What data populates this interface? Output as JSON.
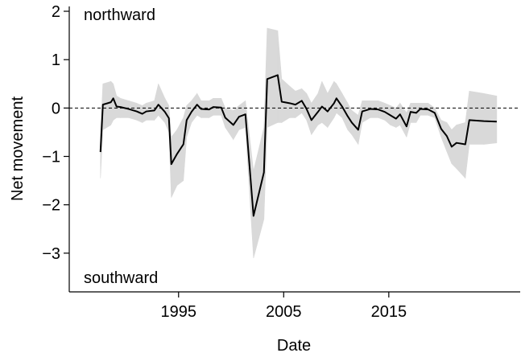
{
  "chart_data": {
    "type": "line",
    "x_label": "Date",
    "y_label": "Net movement",
    "annotations": [
      "northward",
      "southward"
    ],
    "x": [
      1987.57,
      1987.8,
      1988.56,
      1988.79,
      1989.1,
      1989.48,
      1990.25,
      1991.02,
      1991.55,
      1991.93,
      1992.7,
      1993.08,
      1993.7,
      1994.08,
      1994.31,
      1994.85,
      1995.46,
      1995.77,
      1996.23,
      1996.76,
      1997.15,
      1997.91,
      1998.3,
      1999.06,
      1999.44,
      2000.21,
      2000.75,
      2001.36,
      2002.13,
      2003.12,
      2003.43,
      2004.43,
      2004.81,
      2005.57,
      2006.11,
      2006.72,
      2007.18,
      2007.64,
      2008.26,
      2008.64,
      2009.18,
      2009.79,
      2010.02,
      2010.56,
      2011.09,
      2011.48,
      2012.09,
      2012.47,
      2013.24,
      2014.0,
      2014.62,
      2015.15,
      2015.69,
      2016.07,
      2016.69,
      2017.07,
      2017.61,
      2017.99,
      2018.75,
      2019.37,
      2019.98,
      2020.52,
      2020.98,
      2021.44,
      2022.28,
      2022.66,
      2024.04,
      2025.27
    ],
    "series": [
      {
        "color": "#000000",
        "values": [
          -0.91,
          0.07,
          0.12,
          0.2,
          0.03,
          0.02,
          -0.02,
          -0.07,
          -0.12,
          -0.07,
          -0.05,
          0.07,
          -0.08,
          -0.21,
          -1.16,
          -0.95,
          -0.75,
          -0.25,
          -0.08,
          0.07,
          -0.02,
          -0.03,
          0.02,
          0.01,
          -0.2,
          -0.35,
          -0.18,
          -0.13,
          -2.23,
          -1.33,
          0.6,
          0.68,
          0.13,
          0.1,
          0.07,
          0.15,
          -0.02,
          -0.25,
          -0.08,
          0.03,
          -0.07,
          0.1,
          0.2,
          0.03,
          -0.17,
          -0.3,
          -0.45,
          -0.07,
          -0.02,
          -0.03,
          -0.08,
          -0.15,
          -0.22,
          -0.13,
          -0.38,
          -0.08,
          -0.1,
          -0.02,
          -0.03,
          -0.1,
          -0.43,
          -0.58,
          -0.8,
          -0.72,
          -0.75,
          -0.25,
          -0.27,
          -0.28
        ]
      }
    ],
    "band": {
      "color": "#d9d9d9",
      "lower": [
        -1.45,
        -0.45,
        -0.35,
        -0.25,
        -0.2,
        -0.2,
        -0.2,
        -0.25,
        -0.3,
        -0.25,
        -0.25,
        -0.15,
        -0.3,
        -0.5,
        -1.85,
        -1.6,
        -1.5,
        -0.6,
        -0.3,
        -0.15,
        -0.2,
        -0.2,
        -0.15,
        -0.15,
        -0.4,
        -0.65,
        -0.45,
        -0.4,
        -3.1,
        -2.3,
        -0.4,
        -0.3,
        -0.3,
        -0.2,
        -0.2,
        -0.1,
        -0.25,
        -0.55,
        -0.35,
        -0.3,
        -0.4,
        -0.2,
        -0.1,
        -0.2,
        -0.45,
        -0.55,
        -0.75,
        -0.3,
        -0.2,
        -0.2,
        -0.25,
        -0.35,
        -0.4,
        -0.35,
        -0.6,
        -0.3,
        -0.3,
        -0.15,
        -0.15,
        -0.2,
        -0.6,
        -0.9,
        -1.15,
        -1.25,
        -1.45,
        -0.75,
        -0.75,
        -0.72
      ],
      "upper": [
        -0.55,
        0.5,
        0.55,
        0.5,
        0.25,
        0.2,
        0.15,
        0.1,
        0.05,
        0.1,
        0.15,
        0.5,
        0.2,
        0.05,
        -0.6,
        -0.45,
        -0.2,
        0.05,
        0.15,
        0.3,
        0.15,
        0.15,
        0.2,
        0.2,
        0.0,
        -0.05,
        0.05,
        0.15,
        -1.3,
        -0.4,
        1.65,
        1.6,
        0.6,
        0.45,
        0.35,
        0.4,
        0.3,
        0.1,
        0.3,
        0.55,
        0.3,
        0.55,
        0.5,
        0.3,
        0.1,
        -0.05,
        -0.15,
        0.15,
        0.15,
        0.15,
        0.1,
        0.05,
        0.0,
        0.1,
        -0.1,
        0.1,
        0.1,
        0.1,
        0.1,
        0.0,
        -0.25,
        -0.3,
        -0.45,
        -0.35,
        -0.3,
        0.35,
        0.3,
        0.25
      ]
    },
    "reference_line": 0,
    "xlim": [
      1984.6,
      2027.5
    ],
    "ylim": [
      -3.8,
      2.1
    ],
    "xticks": [
      1995,
      2005,
      2015
    ],
    "yticks": [
      {
        "value": -3,
        "label": "−3"
      },
      {
        "value": -2,
        "label": "−2"
      },
      {
        "value": -1,
        "label": "−1"
      },
      0,
      1,
      2
    ]
  }
}
